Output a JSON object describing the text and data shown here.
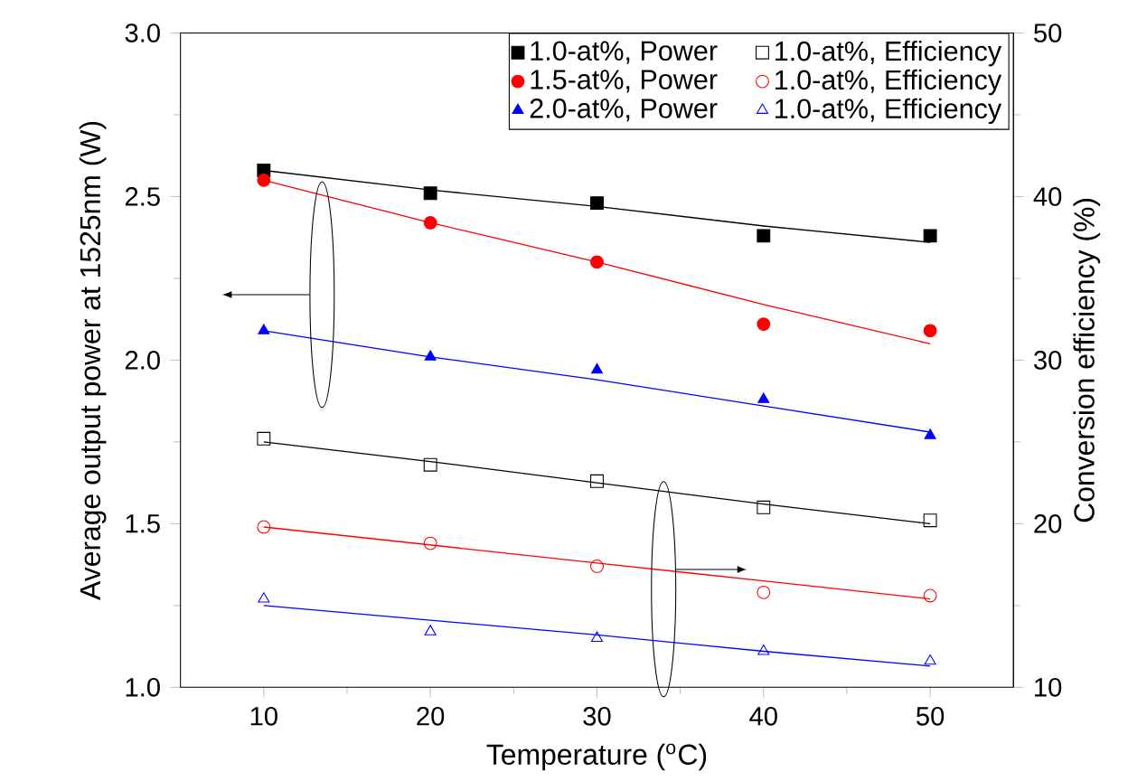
{
  "chart_data": {
    "type": "scatter",
    "xlabel": "Temperature ($^{o}$C)",
    "ylabel": "Average output power at 1525nm (W)",
    "y2label": "Conversion efficiency (%)",
    "x": [
      10,
      20,
      30,
      40,
      50
    ],
    "xlim": [
      5,
      55
    ],
    "xticks": [
      10,
      20,
      30,
      40,
      50
    ],
    "ylim": [
      1,
      3
    ],
    "yticks": [
      {
        "value": 1,
        "label": "1.0"
      },
      {
        "value": 1.5,
        "label": "1.5"
      },
      {
        "value": 2,
        "label": "2.0"
      },
      {
        "value": 2.5,
        "label": "2.5"
      },
      {
        "value": 3,
        "label": "3.0"
      }
    ],
    "y2lim": [
      10,
      50
    ],
    "y2ticks": [
      10,
      20,
      30,
      40,
      50
    ],
    "legend": "top right",
    "series": [
      {
        "name": "1.0-at%, Power",
        "color": "#000000",
        "marker": "square",
        "values": [
          2.58,
          2.51,
          2.48,
          2.38,
          2.38
        ]
      },
      {
        "name": "1.0-at%, Efficiency",
        "color": "#000000",
        "marker": "square",
        "axis": "y2",
        "values": [
          25.2,
          23.6,
          22.6,
          21.0,
          20.2
        ]
      },
      {
        "name": "1.5-at%, Power",
        "color": "#ff0000",
        "marker": "circle",
        "values": [
          2.55,
          2.42,
          2.3,
          2.11,
          2.09
        ]
      },
      {
        "name": "1.0-at%, Efficiency",
        "color": "#ff0000",
        "marker": "circle",
        "axis": "y2",
        "values": [
          19.8,
          18.8,
          17.4,
          15.8,
          15.6
        ]
      },
      {
        "name": "2.0-at%, Power",
        "color": "#0000ff",
        "marker": "triangle",
        "values": [
          2.09,
          2.01,
          1.97,
          1.88,
          1.77
        ]
      },
      {
        "name": "1.0-at%, Efficiency",
        "color": "#0000ff",
        "marker": "triangle",
        "axis": "y2",
        "values": [
          15.4,
          13.4,
          13.0,
          12.2,
          11.6
        ]
      },
      {
        "type": "line",
        "color": "#000000",
        "values": [
          2.58,
          2.52,
          2.47,
          2.41,
          2.36
        ]
      },
      {
        "type": "line",
        "color": "#ff0000",
        "values": [
          2.55,
          2.42,
          2.3,
          2.17,
          2.05
        ]
      },
      {
        "type": "line",
        "color": "#0000ff",
        "values": [
          2.09,
          2.01,
          1.94,
          1.86,
          1.78
        ]
      },
      {
        "type": "line",
        "color": "#000000",
        "axis": "y2",
        "values": [
          25.0,
          23.8,
          22.5,
          21.2,
          20.0
        ]
      },
      {
        "type": "line",
        "color": "#ff0000",
        "axis": "y2",
        "values": [
          19.8,
          18.7,
          17.6,
          16.5,
          15.4
        ]
      },
      {
        "type": "line",
        "color": "#0000ff",
        "axis": "y2",
        "values": [
          15.0,
          14.1,
          13.2,
          12.2,
          11.3
        ]
      }
    ]
  }
}
